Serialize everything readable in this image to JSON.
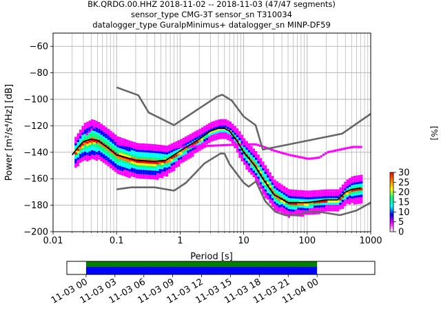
{
  "chart_data": [
    {
      "type": "heatmap",
      "title_lines": [
        "BK.QRDG.00.HHZ   2018-11-02 -- 2018-11-03  (47/47 segments)",
        "sensor_type CMG-3T sensor_sn T310034",
        "datalogger_type GuralpMinimus+ datalogger_sn MINP-DF59"
      ],
      "xlabel": "Period [s]",
      "ylabel": "Power [m²/s⁴/Hz] [dB]",
      "x_scale": "log",
      "xlim": [
        0.01,
        1000
      ],
      "ylim": [
        -200,
        -50
      ],
      "x_ticks": [
        {
          "value": 0.01,
          "label": "0.01"
        },
        {
          "value": 0.1,
          "label": "0.1"
        },
        {
          "value": 1,
          "label": "1"
        },
        {
          "value": 10,
          "label": "10"
        },
        {
          "value": 100,
          "label": "100"
        },
        {
          "value": 1000,
          "label": "1000"
        }
      ],
      "y_ticks": [
        {
          "value": -60,
          "label": "−60"
        },
        {
          "value": -80,
          "label": "−80"
        },
        {
          "value": -100,
          "label": "−100"
        },
        {
          "value": -120,
          "label": "−120"
        },
        {
          "value": -140,
          "label": "−140"
        },
        {
          "value": -160,
          "label": "−160"
        },
        {
          "value": -180,
          "label": "−180"
        },
        {
          "value": -200,
          "label": "−200"
        }
      ],
      "grid": true,
      "colorbar": {
        "label": "[%]",
        "range": [
          0,
          30
        ],
        "ticks": [
          {
            "value": 0,
            "label": "0"
          },
          {
            "value": 5,
            "label": "5"
          },
          {
            "value": 10,
            "label": "10"
          },
          {
            "value": 15,
            "label": "15"
          },
          {
            "value": 20,
            "label": "20"
          },
          {
            "value": 25,
            "label": "25"
          },
          {
            "value": 30,
            "label": "30"
          }
        ],
        "colors": [
          "#ffffff",
          "#ff00ff",
          "#0000ff",
          "#00ffff",
          "#00ff80",
          "#ffff00",
          "#ff8000",
          "#ff0000"
        ]
      },
      "noise_models": {
        "color": "#666666",
        "high": [
          [
            0.1,
            -91
          ],
          [
            0.22,
            -97
          ],
          [
            0.32,
            -110
          ],
          [
            0.8,
            -119.5
          ],
          [
            3.8,
            -98
          ],
          [
            4.6,
            -96.5
          ],
          [
            6.5,
            -101
          ],
          [
            10,
            -113
          ],
          [
            15.4,
            -119.5
          ],
          [
            20,
            -138
          ],
          [
            354,
            -126
          ],
          [
            1000,
            -111
          ]
        ],
        "low": [
          [
            0.1,
            -168
          ],
          [
            0.17,
            -166.5
          ],
          [
            0.4,
            -166.5
          ],
          [
            0.8,
            -169
          ],
          [
            1.24,
            -163
          ],
          [
            2.4,
            -148.5
          ],
          [
            4.3,
            -141
          ],
          [
            5,
            -141
          ],
          [
            6,
            -149
          ],
          [
            10,
            -163
          ],
          [
            12,
            -166
          ],
          [
            15.6,
            -162
          ],
          [
            21.9,
            -177
          ],
          [
            31.6,
            -185
          ],
          [
            45,
            -187.5
          ],
          [
            70,
            -187.5
          ],
          [
            101,
            -185
          ],
          [
            154,
            -185
          ],
          [
            328,
            -187.5
          ],
          [
            600,
            -184
          ],
          [
            1000,
            -178
          ]
        ]
      },
      "mode_curve": {
        "color": "#000000",
        "points": [
          [
            0.02,
            -142
          ],
          [
            0.025,
            -136
          ],
          [
            0.03,
            -132
          ],
          [
            0.04,
            -130
          ],
          [
            0.05,
            -131
          ],
          [
            0.07,
            -136
          ],
          [
            0.1,
            -142
          ],
          [
            0.2,
            -146
          ],
          [
            0.4,
            -147
          ],
          [
            0.6,
            -146
          ],
          [
            1,
            -139
          ],
          [
            2,
            -130
          ],
          [
            3,
            -124
          ],
          [
            4,
            -122
          ],
          [
            5,
            -122
          ],
          [
            6,
            -124
          ],
          [
            8,
            -132
          ],
          [
            10,
            -140
          ],
          [
            15,
            -150
          ],
          [
            20,
            -160
          ],
          [
            30,
            -172
          ],
          [
            50,
            -178
          ],
          [
            100,
            -178
          ],
          [
            200,
            -176
          ],
          [
            300,
            -176
          ],
          [
            400,
            -170
          ],
          [
            500,
            -168
          ],
          [
            700,
            -167
          ]
        ]
      },
      "heat_band": {
        "points": [
          [
            0.02,
            -142,
            6
          ],
          [
            0.025,
            -136,
            7
          ],
          [
            0.03,
            -132,
            9
          ],
          [
            0.04,
            -130,
            10
          ],
          [
            0.05,
            -131,
            9
          ],
          [
            0.07,
            -136,
            9
          ],
          [
            0.1,
            -142,
            9
          ],
          [
            0.2,
            -146,
            8
          ],
          [
            0.4,
            -147,
            8
          ],
          [
            0.6,
            -146,
            6
          ],
          [
            1,
            -139,
            4
          ],
          [
            2,
            -130,
            3
          ],
          [
            3,
            -124,
            2
          ],
          [
            4,
            -122,
            2
          ],
          [
            5,
            -122,
            2
          ],
          [
            6,
            -124,
            2
          ],
          [
            8,
            -132,
            4
          ],
          [
            10,
            -140,
            5
          ],
          [
            15,
            -150,
            6
          ],
          [
            20,
            -160,
            7
          ],
          [
            30,
            -172,
            6
          ],
          [
            50,
            -178,
            5
          ],
          [
            100,
            -178,
            4
          ],
          [
            200,
            -176,
            3
          ],
          [
            300,
            -176,
            3
          ],
          [
            400,
            -170,
            4
          ],
          [
            500,
            -168,
            5
          ],
          [
            700,
            -167,
            5
          ]
        ],
        "outliers_upper": [
          [
            0.03,
            -128
          ],
          [
            0.04,
            -122
          ],
          [
            0.05,
            -118
          ],
          [
            0.07,
            -125
          ],
          [
            0.1,
            -134
          ],
          [
            0.2,
            -136
          ],
          [
            0.4,
            -137
          ],
          [
            1,
            -136
          ],
          [
            10,
            -134
          ],
          [
            15,
            -134
          ],
          [
            20,
            -136
          ],
          [
            30,
            -139
          ],
          [
            50,
            -142
          ],
          [
            100,
            -145
          ],
          [
            150,
            -144
          ],
          [
            200,
            -140
          ],
          [
            500,
            -136
          ],
          [
            700,
            -136
          ]
        ]
      }
    },
    {
      "type": "bar",
      "description_free": true,
      "x_ticks": [
        {
          "label": "11-03 00"
        },
        {
          "label": "11-03 03"
        },
        {
          "label": "11-03 06"
        },
        {
          "label": "11-03 09"
        },
        {
          "label": "11-03 12"
        },
        {
          "label": "11-03 15"
        },
        {
          "label": "11-03 18"
        },
        {
          "label": "11-03 21"
        },
        {
          "label": "11-04 00"
        }
      ],
      "xlim_hours": [
        -2,
        30
      ],
      "coverage_hours": [
        0,
        24
      ],
      "colors": {
        "upper": "#008000",
        "lower": "#0000ff"
      }
    }
  ]
}
